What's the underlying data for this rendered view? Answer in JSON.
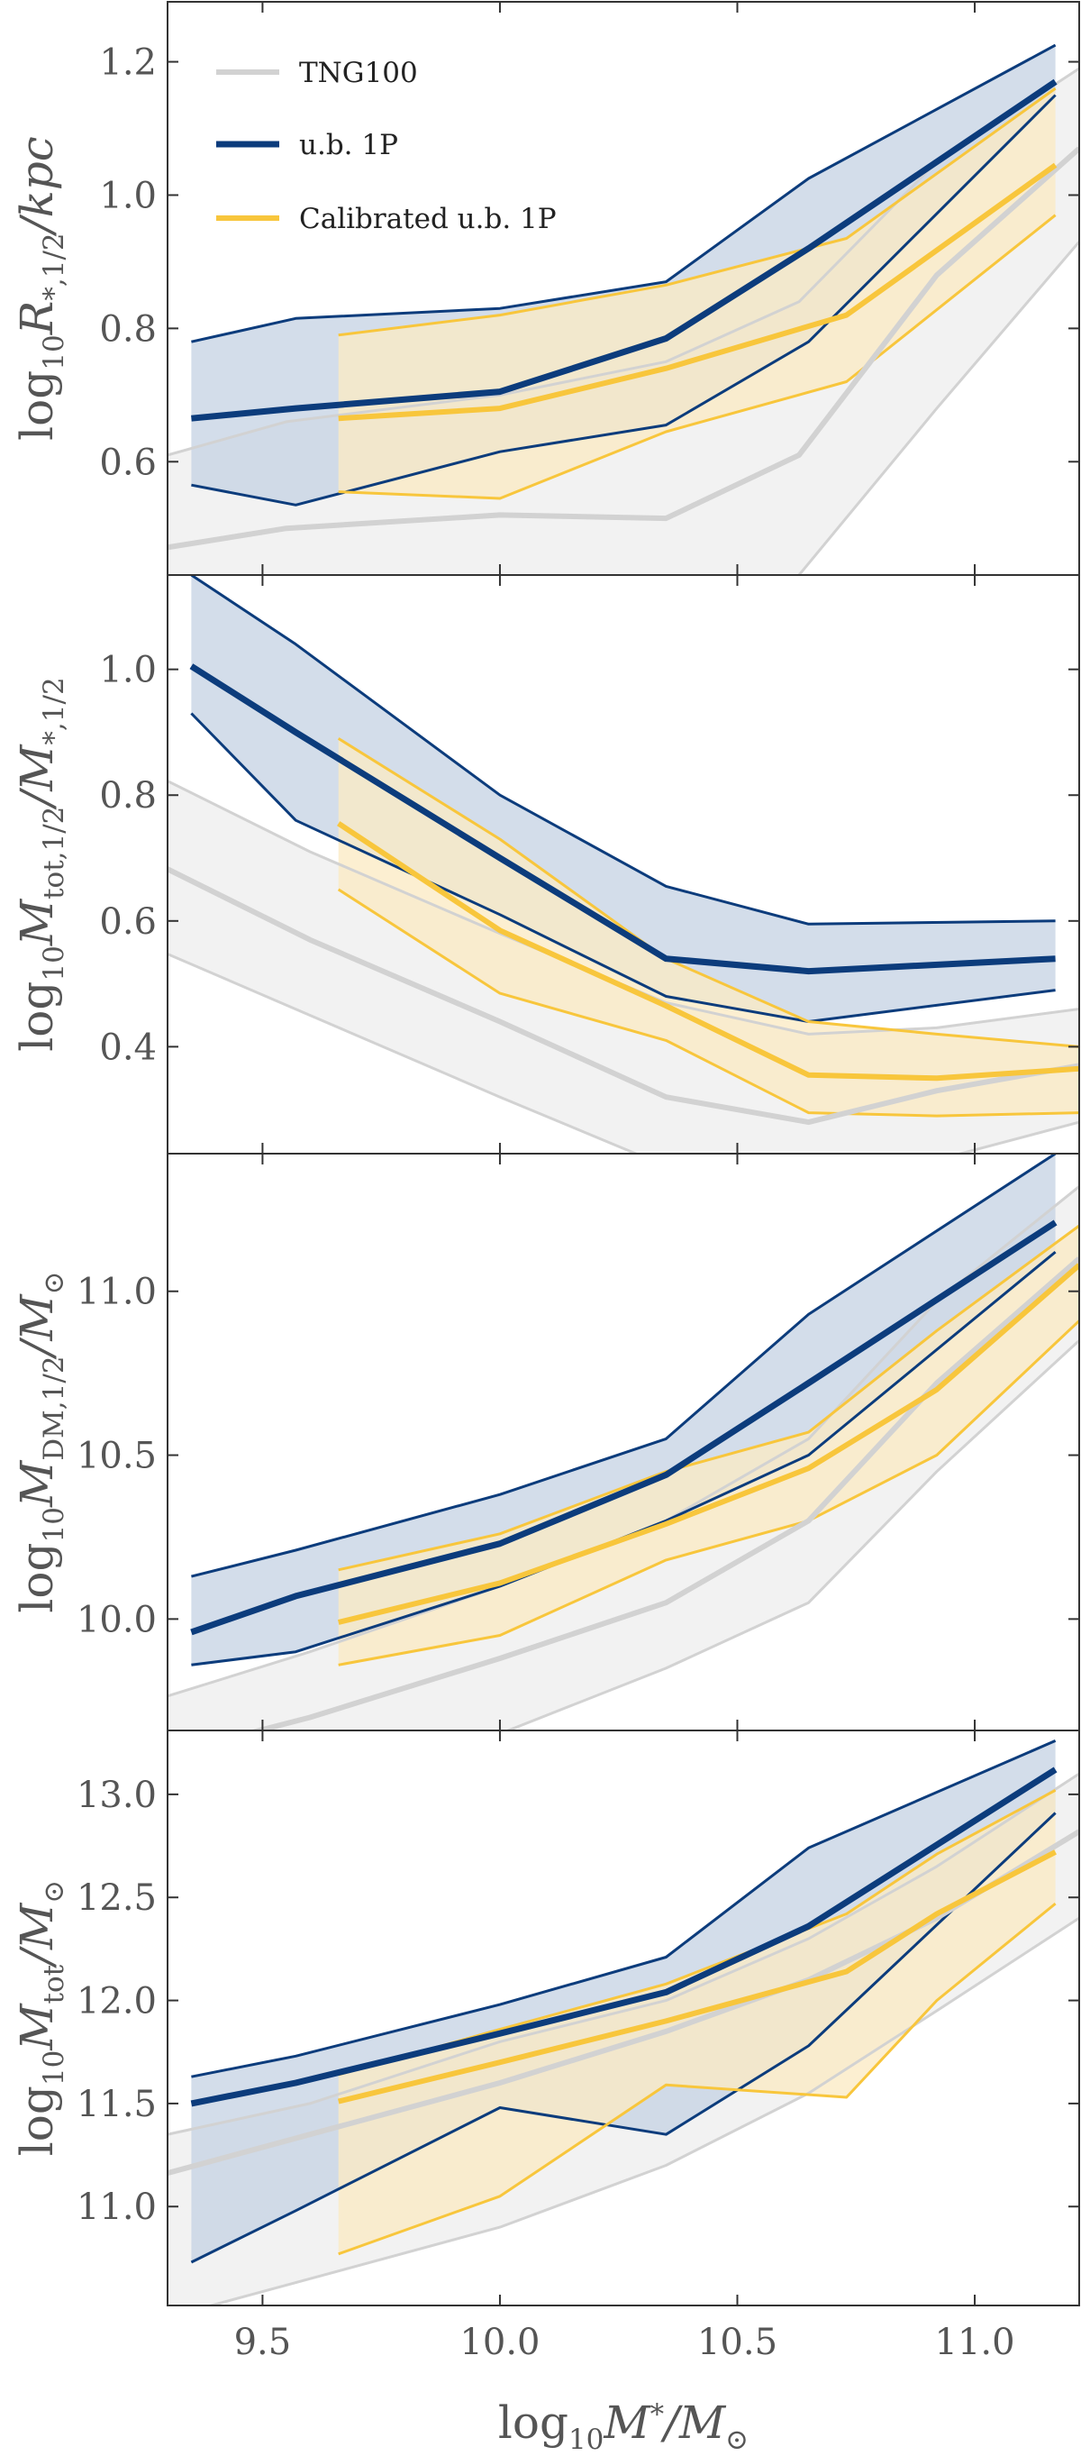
{
  "chart_data": {
    "type": "line",
    "layout": "4 vertically stacked panels sharing the x-axis",
    "legend": {
      "location": "top-left of first panel",
      "entries": [
        {
          "key": "tng",
          "label": "TNG100"
        },
        {
          "key": "ub",
          "label": "u.b. 1P"
        },
        {
          "key": "cal",
          "label": "Calibrated u.b. 1P"
        }
      ]
    },
    "colors": {
      "tng_line": "#d2d2d2",
      "tng_band": "#f2f2f2",
      "ub_line": "#0c3c7c",
      "ub_band": "#c6d3e4",
      "cal_line": "#f8c63c",
      "cal_band": "#fbebc4",
      "axis": "#333333",
      "tick_text": "#555555"
    },
    "x_axis": {
      "label_parts": [
        "log",
        "10",
        "M",
        "*",
        "/M",
        "⊙"
      ],
      "xlim": [
        9.3,
        11.22
      ],
      "ticks": [
        9.5,
        10.0,
        10.5,
        11.0
      ],
      "tick_labels": [
        "9.5",
        "10.0",
        "10.5",
        "11.0"
      ]
    },
    "panels": [
      {
        "id": "p1",
        "ylabel_parts": [
          "log",
          "10",
          "R",
          "*,1/2",
          "/kpc",
          ""
        ],
        "ylim": [
          0.43,
          1.29
        ],
        "yticks": [
          0.6,
          0.8,
          1.0,
          1.2
        ],
        "ytick_labels": [
          "0.6",
          "0.8",
          "1.0",
          "1.2"
        ],
        "series": [
          {
            "key": "tng",
            "x": [
              9.2,
              9.55,
              10.0,
              10.35,
              10.63,
              10.92,
              11.22
            ],
            "median": [
              0.46,
              0.5,
              0.52,
              0.515,
              0.61,
              0.88,
              1.07
            ],
            "lower": [
              0.2,
              0.2,
              0.2,
              0.3,
              0.43,
              0.68,
              0.93
            ],
            "upper": [
              0.59,
              0.66,
              0.7,
              0.75,
              0.84,
              1.05,
              1.19
            ]
          },
          {
            "key": "ub",
            "x": [
              9.35,
              9.57,
              10.0,
              10.35,
              10.65,
              11.17
            ],
            "median": [
              0.665,
              0.68,
              0.705,
              0.785,
              0.92,
              1.17
            ],
            "lower": [
              0.565,
              0.535,
              0.615,
              0.655,
              0.78,
              1.15
            ],
            "upper": [
              0.78,
              0.815,
              0.83,
              0.87,
              1.025,
              1.225
            ]
          },
          {
            "key": "cal",
            "x": [
              9.66,
              10.0,
              10.35,
              10.73,
              11.17
            ],
            "median": [
              0.665,
              0.68,
              0.74,
              0.82,
              1.045
            ],
            "lower": [
              0.555,
              0.545,
              0.645,
              0.72,
              0.97
            ],
            "upper": [
              0.79,
              0.82,
              0.865,
              0.935,
              1.16
            ]
          }
        ]
      },
      {
        "id": "p2",
        "ylabel_parts": [
          "log",
          "10",
          "M",
          "tot,1/2",
          "/M",
          "*,1/2"
        ],
        "ylim": [
          0.23,
          1.15
        ],
        "yticks": [
          0.4,
          0.6,
          0.8,
          1.0
        ],
        "ytick_labels": [
          "0.4",
          "0.6",
          "0.8",
          "1.0"
        ],
        "series": [
          {
            "key": "tng",
            "x": [
              9.2,
              9.6,
              10.0,
              10.35,
              10.65,
              10.92,
              11.22
            ],
            "median": [
              0.72,
              0.57,
              0.44,
              0.32,
              0.28,
              0.33,
              0.37
            ],
            "lower": [
              0.58,
              0.45,
              0.32,
              0.21,
              0.16,
              0.22,
              0.28
            ],
            "upper": [
              0.86,
              0.71,
              0.58,
              0.47,
              0.42,
              0.43,
              0.46
            ]
          },
          {
            "key": "ub",
            "x": [
              9.35,
              9.57,
              10.0,
              10.35,
              10.65,
              11.17
            ],
            "median": [
              1.005,
              0.9,
              0.7,
              0.54,
              0.52,
              0.54
            ],
            "lower": [
              0.93,
              0.76,
              0.61,
              0.48,
              0.44,
              0.49
            ],
            "upper": [
              1.15,
              1.04,
              0.8,
              0.655,
              0.595,
              0.6
            ],
            "lower_extra": {
              "x": [
                9.35,
                9.57,
                10.0,
                10.35,
                10.65,
                11.17
              ],
              "y": [
                0.93,
                0.76,
                0.61,
                0.48,
                0.44,
                0.49
              ]
            }
          },
          {
            "key": "cal",
            "x": [
              9.66,
              10.0,
              10.35,
              10.65,
              10.92,
              11.22
            ],
            "median": [
              0.755,
              0.585,
              0.465,
              0.355,
              0.35,
              0.365
            ],
            "lower": [
              0.65,
              0.485,
              0.41,
              0.295,
              0.29,
              0.295
            ],
            "upper": [
              0.89,
              0.73,
              0.54,
              0.44,
              0.42,
              0.4
            ]
          }
        ]
      },
      {
        "id": "p3",
        "ylabel_parts": [
          "log",
          "10",
          "M",
          "DM,1/2",
          "/M",
          "⊙"
        ],
        "ylim": [
          9.66,
          11.42
        ],
        "yticks": [
          10.0,
          10.5,
          11.0
        ],
        "ytick_labels": [
          "10.0",
          "10.5",
          "11.0"
        ],
        "series": [
          {
            "key": "tng",
            "x": [
              9.2,
              9.6,
              10.0,
              10.35,
              10.65,
              10.92,
              11.22
            ],
            "median": [
              9.55,
              9.7,
              9.88,
              10.05,
              10.3,
              10.72,
              11.1
            ],
            "lower": [
              9.3,
              9.45,
              9.65,
              9.85,
              10.05,
              10.45,
              10.85
            ],
            "upper": [
              9.72,
              9.9,
              10.1,
              10.3,
              10.55,
              10.97,
              11.32
            ]
          },
          {
            "key": "ub",
            "x": [
              9.35,
              9.57,
              10.0,
              10.35,
              10.65,
              11.17
            ],
            "median": [
              9.96,
              10.07,
              10.23,
              10.44,
              10.72,
              11.21
            ],
            "lower": [
              9.86,
              9.9,
              10.1,
              10.3,
              10.5,
              11.12
            ],
            "upper": [
              10.13,
              10.21,
              10.38,
              10.55,
              10.93,
              11.42
            ]
          },
          {
            "key": "cal",
            "x": [
              9.66,
              10.0,
              10.35,
              10.65,
              10.92,
              11.22
            ],
            "median": [
              9.99,
              10.11,
              10.29,
              10.46,
              10.7,
              11.08
            ],
            "lower": [
              9.86,
              9.95,
              10.18,
              10.3,
              10.5,
              10.91
            ],
            "upper": [
              10.15,
              10.26,
              10.45,
              10.57,
              10.88,
              11.2
            ]
          }
        ]
      },
      {
        "id": "p4",
        "ylabel_parts": [
          "log",
          "10",
          "M",
          "tot",
          "/M",
          "⊙"
        ],
        "ylim": [
          10.52,
          13.31
        ],
        "yticks": [
          11.0,
          11.5,
          12.0,
          12.5,
          13.0
        ],
        "ytick_labels": [
          "11.0",
          "11.5",
          "12.0",
          "12.5",
          "13.0"
        ],
        "series": [
          {
            "key": "tng",
            "x": [
              9.2,
              9.6,
              10.0,
              10.35,
              10.65,
              10.92,
              11.22
            ],
            "median": [
              11.1,
              11.35,
              11.6,
              11.85,
              12.1,
              12.4,
              12.82
            ],
            "lower": [
              10.4,
              10.65,
              10.9,
              11.2,
              11.55,
              11.95,
              12.4
            ],
            "upper": [
              11.3,
              11.5,
              11.8,
              12.0,
              12.3,
              12.65,
              13.1
            ]
          },
          {
            "key": "ub",
            "x": [
              9.35,
              9.57,
              10.0,
              10.35,
              10.65,
              11.17
            ],
            "median": [
              11.5,
              11.6,
              11.84,
              12.04,
              12.36,
              13.12
            ],
            "lower": [
              10.73,
              10.98,
              11.48,
              11.35,
              11.78,
              12.91
            ],
            "upper": [
              11.63,
              11.73,
              11.98,
              12.21,
              12.74,
              13.26
            ]
          },
          {
            "key": "cal",
            "x": [
              9.66,
              10.0,
              10.35,
              10.73,
              10.92,
              11.17
            ],
            "median": [
              11.51,
              11.7,
              11.9,
              12.14,
              12.42,
              12.72
            ],
            "lower": [
              10.77,
              11.05,
              11.59,
              11.53,
              12.0,
              12.47
            ],
            "upper": [
              11.64,
              11.86,
              12.08,
              12.42,
              12.71,
              13.02
            ]
          }
        ]
      }
    ]
  }
}
